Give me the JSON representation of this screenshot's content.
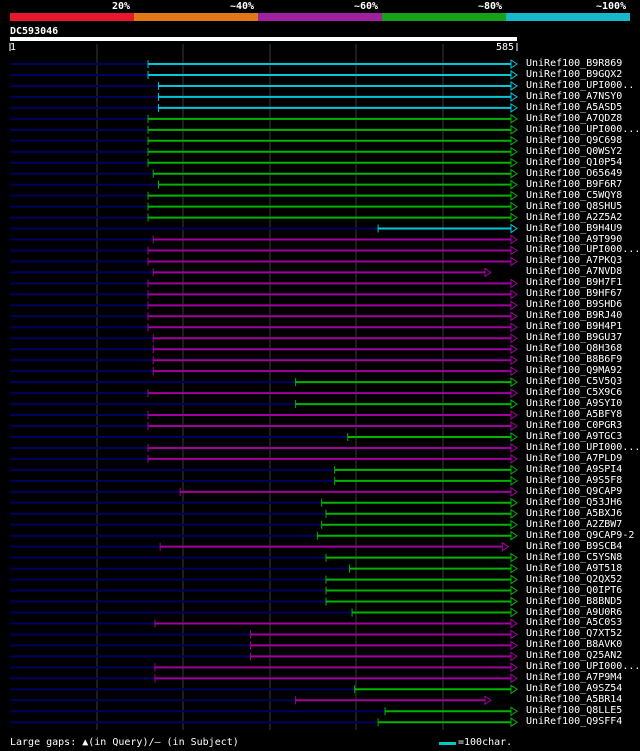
{
  "legend": {
    "colors": [
      "#e8182c",
      "#e07818",
      "#a020a0",
      "#18a018",
      "#18b8c8"
    ],
    "labels": [
      "20%",
      "~40%",
      "~60%",
      "~80%",
      "~100%"
    ]
  },
  "query": {
    "name": "DC593046",
    "start": "1",
    "end": "585",
    "length": 585
  },
  "colors": {
    "cyan": "#00c8d8",
    "green": "#00b400",
    "purple": "#a000a0",
    "navy": "#000060"
  },
  "hits": [
    {
      "name": "UniRef100_B9R869",
      "s": 160,
      "e": 585,
      "c": "cyan",
      "t": 1
    },
    {
      "name": "UniRef100_B9GQX2",
      "s": 160,
      "e": 585,
      "c": "cyan",
      "t": 1
    },
    {
      "name": "UniRef100_UPI000..",
      "s": 172,
      "e": 585,
      "c": "cyan",
      "t": 1
    },
    {
      "name": "UniRef100_A7NSY0",
      "s": 172,
      "e": 585,
      "c": "cyan",
      "t": 1
    },
    {
      "name": "UniRef100_A5ASD5",
      "s": 172,
      "e": 585,
      "c": "cyan",
      "t": 1
    },
    {
      "name": "UniRef100_A7QDZ8",
      "s": 160,
      "e": 585,
      "c": "green",
      "t": 1
    },
    {
      "name": "UniRef100_UPI000...",
      "s": 160,
      "e": 585,
      "c": "green",
      "t": 1
    },
    {
      "name": "UniRef100_Q9C698",
      "s": 160,
      "e": 585,
      "c": "green",
      "t": 1
    },
    {
      "name": "UniRef100_Q0WSY2",
      "s": 160,
      "e": 585,
      "c": "green",
      "t": 1
    },
    {
      "name": "UniRef100_Q10P54",
      "s": 160,
      "e": 585,
      "c": "green",
      "t": 1
    },
    {
      "name": "UniRef100_O65649",
      "s": 166,
      "e": 585,
      "c": "green",
      "t": 1
    },
    {
      "name": "UniRef100_B9F6R7",
      "s": 172,
      "e": 585,
      "c": "green",
      "t": 1
    },
    {
      "name": "UniRef100_C5WQY8",
      "s": 160,
      "e": 585,
      "c": "green",
      "t": 1
    },
    {
      "name": "UniRef100_Q8SHU5",
      "s": 160,
      "e": 585,
      "c": "green",
      "t": 1
    },
    {
      "name": "UniRef100_A2Z5A2",
      "s": 160,
      "e": 585,
      "c": "green",
      "t": 1
    },
    {
      "name": "UniRef100_B9H4U9",
      "s": 425,
      "e": 585,
      "c": "cyan",
      "t": 1
    },
    {
      "name": "UniRef100_A9T990",
      "s": 166,
      "e": 585,
      "c": "purple",
      "t": 1
    },
    {
      "name": "UniRef100_UPI000...",
      "s": 160,
      "e": 585,
      "c": "purple",
      "t": 1
    },
    {
      "name": "UniRef100_A7PKQ3",
      "s": 160,
      "e": 585,
      "c": "purple",
      "t": 1
    },
    {
      "name": "UniRef100_A7NVD8",
      "s": 166,
      "e": 555,
      "c": "purple",
      "t": 1
    },
    {
      "name": "UniRef100_B9H7F1",
      "s": 160,
      "e": 585,
      "c": "purple",
      "t": 1
    },
    {
      "name": "UniRef100_B9HF67",
      "s": 160,
      "e": 585,
      "c": "purple",
      "t": 1
    },
    {
      "name": "UniRef100_B9SHD6",
      "s": 160,
      "e": 585,
      "c": "purple",
      "t": 1
    },
    {
      "name": "UniRef100_B9RJ40",
      "s": 160,
      "e": 585,
      "c": "purple",
      "t": 1
    },
    {
      "name": "UniRef100_B9H4P1",
      "s": 160,
      "e": 585,
      "c": "purple",
      "t": 1
    },
    {
      "name": "UniRef100_B9GU37",
      "s": 166,
      "e": 585,
      "c": "purple",
      "t": 1
    },
    {
      "name": "UniRef100_Q8H368",
      "s": 166,
      "e": 585,
      "c": "purple",
      "t": 1
    },
    {
      "name": "UniRef100_B8B6F9",
      "s": 166,
      "e": 585,
      "c": "purple",
      "t": 1
    },
    {
      "name": "UniRef100_Q9MA92",
      "s": 166,
      "e": 585,
      "c": "purple",
      "t": 1
    },
    {
      "name": "UniRef100_C5V5Q3",
      "s": 330,
      "e": 585,
      "c": "green",
      "t": 1
    },
    {
      "name": "UniRef100_C5X9C6",
      "s": 160,
      "e": 585,
      "c": "purple",
      "t": 1
    },
    {
      "name": "UniRef100_A9SYI0",
      "s": 330,
      "e": 585,
      "c": "green",
      "t": 1
    },
    {
      "name": "UniRef100_A5BFY8",
      "s": 160,
      "e": 585,
      "c": "purple",
      "t": 1
    },
    {
      "name": "UniRef100_C0PGR3",
      "s": 160,
      "e": 585,
      "c": "purple",
      "t": 1
    },
    {
      "name": "UniRef100_A9TGC3",
      "s": 390,
      "e": 585,
      "c": "green",
      "t": 1
    },
    {
      "name": "UniRef100_UPI000...",
      "s": 160,
      "e": 585,
      "c": "purple",
      "t": 1
    },
    {
      "name": "UniRef100_A7PLD9",
      "s": 160,
      "e": 585,
      "c": "purple",
      "t": 1
    },
    {
      "name": "UniRef100_A9SPI4",
      "s": 375,
      "e": 585,
      "c": "green",
      "t": 1
    },
    {
      "name": "UniRef100_A9S5F8",
      "s": 375,
      "e": 585,
      "c": "green",
      "t": 1
    },
    {
      "name": "UniRef100_Q9CAP9",
      "s": 197,
      "e": 585,
      "c": "purple",
      "t": 1
    },
    {
      "name": "UniRef100_Q53JH6",
      "s": 360,
      "e": 585,
      "c": "green",
      "t": 1
    },
    {
      "name": "UniRef100_A5BXJ6",
      "s": 365,
      "e": 585,
      "c": "green",
      "t": 1
    },
    {
      "name": "UniRef100_A2ZBW7",
      "s": 360,
      "e": 585,
      "c": "green",
      "t": 1
    },
    {
      "name": "UniRef100_Q9CAP9-2",
      "s": 355,
      "e": 585,
      "c": "green",
      "t": 1
    },
    {
      "name": "UniRef100_B9SCB4",
      "s": 174,
      "e": 575,
      "c": "purple",
      "t": 1
    },
    {
      "name": "UniRef100_C5YSN8",
      "s": 365,
      "e": 585,
      "c": "green",
      "t": 1
    },
    {
      "name": "UniRef100_A9T518",
      "s": 392,
      "e": 585,
      "c": "green",
      "t": 1
    },
    {
      "name": "UniRef100_Q2QX52",
      "s": 365,
      "e": 585,
      "c": "green",
      "t": 1
    },
    {
      "name": "UniRef100_Q0IPT6",
      "s": 365,
      "e": 585,
      "c": "green",
      "t": 1
    },
    {
      "name": "UniRef100_B8BND5",
      "s": 365,
      "e": 585,
      "c": "green",
      "t": 1
    },
    {
      "name": "UniRef100_A9U0R6",
      "s": 395,
      "e": 585,
      "c": "green",
      "t": 1
    },
    {
      "name": "UniRef100_A5C0S3",
      "s": 168,
      "e": 585,
      "c": "purple",
      "t": 1
    },
    {
      "name": "UniRef100_Q7XT52",
      "s": 278,
      "e": 585,
      "c": "purple",
      "t": 1
    },
    {
      "name": "UniRef100_B8AVK0",
      "s": 278,
      "e": 585,
      "c": "purple",
      "t": 1
    },
    {
      "name": "UniRef100_Q25AN2",
      "s": 278,
      "e": 585,
      "c": "purple",
      "t": 1
    },
    {
      "name": "UniRef100_UPI000...",
      "s": 168,
      "e": 585,
      "c": "purple",
      "t": 1
    },
    {
      "name": "UniRef100_A7P9M4",
      "s": 168,
      "e": 585,
      "c": "purple",
      "t": 1
    },
    {
      "name": "UniRef100_A9SZ54",
      "s": 398,
      "e": 585,
      "c": "green",
      "t": 1
    },
    {
      "name": "UniRef100_A5BR14",
      "s": 330,
      "e": 555,
      "c": "purple",
      "t": 1
    },
    {
      "name": "UniRef100_Q8LLE5",
      "s": 433,
      "e": 585,
      "c": "green",
      "t": 1
    },
    {
      "name": "UniRef100_Q9SFF4",
      "s": 425,
      "e": 585,
      "c": "green",
      "t": 1
    }
  ],
  "footer": {
    "text": "Large gaps: ▲(in Query)/– (in Subject)",
    "scale": "=100char."
  }
}
